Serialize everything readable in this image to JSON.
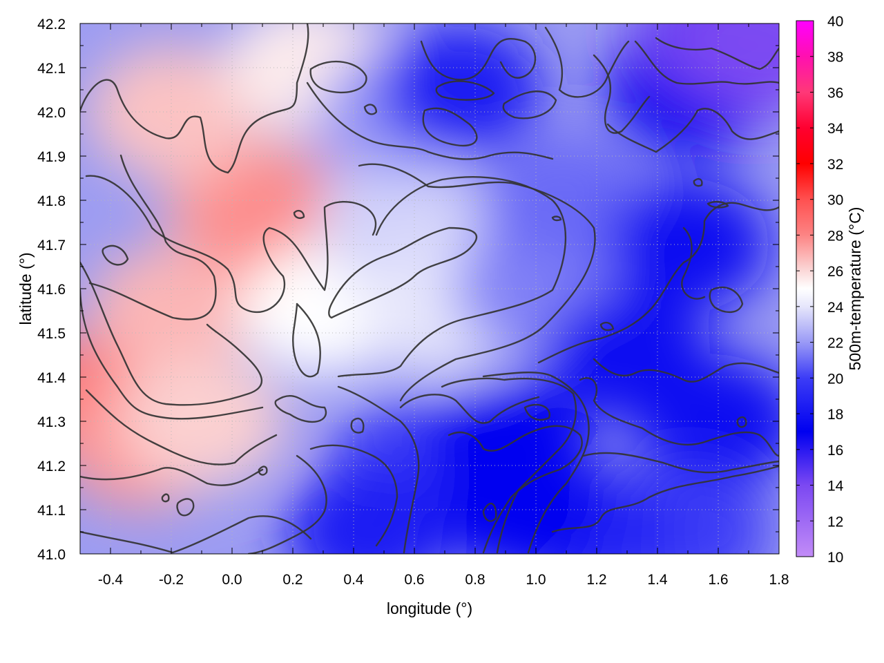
{
  "chart_data": {
    "type": "heatmap",
    "xlabel": "longitude (°)",
    "ylabel": "latitude (°)",
    "colorbar_label": "500m-temperature (°C)",
    "xlim": [
      -0.5,
      1.8
    ],
    "ylim": [
      41.0,
      42.2
    ],
    "clim": [
      10,
      40
    ],
    "x_ticks": [
      "-0.4",
      "-0.2",
      "0.0",
      "0.2",
      "0.4",
      "0.6",
      "0.8",
      "1.0",
      "1.2",
      "1.4",
      "1.6",
      "1.8"
    ],
    "x_tick_values": [
      -0.4,
      -0.2,
      0.0,
      0.2,
      0.4,
      0.6,
      0.8,
      1.0,
      1.2,
      1.4,
      1.6,
      1.8
    ],
    "y_ticks": [
      "41.0",
      "41.1",
      "41.2",
      "41.3",
      "41.4",
      "41.5",
      "41.6",
      "41.7",
      "41.8",
      "41.9",
      "42.0",
      "42.1",
      "42.2"
    ],
    "y_tick_values": [
      41.0,
      41.1,
      41.2,
      41.3,
      41.4,
      41.5,
      41.6,
      41.7,
      41.8,
      41.9,
      42.0,
      42.1,
      42.2
    ],
    "colorbar_ticks": [
      "10",
      "12",
      "14",
      "16",
      "18",
      "20",
      "22",
      "24",
      "26",
      "28",
      "30",
      "32",
      "34",
      "36",
      "38",
      "40"
    ],
    "colorbar_tick_values": [
      10,
      12,
      14,
      16,
      18,
      20,
      22,
      24,
      26,
      28,
      30,
      32,
      34,
      36,
      38,
      40
    ],
    "colormap": [
      {
        "value": 10,
        "color": "#c28cf7"
      },
      {
        "value": 14,
        "color": "#7b48f2"
      },
      {
        "value": 17,
        "color": "#0000f0"
      },
      {
        "value": 20,
        "color": "#3c3cf6"
      },
      {
        "value": 22,
        "color": "#9a9af6"
      },
      {
        "value": 24,
        "color": "#e6e6fb"
      },
      {
        "value": 25,
        "color": "#ffffff"
      },
      {
        "value": 26,
        "color": "#fbd8d8"
      },
      {
        "value": 28,
        "color": "#fc8484"
      },
      {
        "value": 30,
        "color": "#ff5050"
      },
      {
        "value": 32,
        "color": "#ff0000"
      },
      {
        "value": 34,
        "color": "#ff0030"
      },
      {
        "value": 36,
        "color": "#ff3878"
      },
      {
        "value": 38,
        "color": "#ff10b0"
      },
      {
        "value": 40,
        "color": "#ff00ff"
      }
    ],
    "field_samples": [
      {
        "lon": -0.45,
        "lat": 41.35,
        "temp": 28.5
      },
      {
        "lon": -0.3,
        "lat": 41.25,
        "temp": 27.5
      },
      {
        "lon": -0.2,
        "lat": 41.55,
        "temp": 26.8
      },
      {
        "lon": 0.05,
        "lat": 41.8,
        "temp": 27.2
      },
      {
        "lon": 0.15,
        "lat": 41.75,
        "temp": 27.8
      },
      {
        "lon": -0.2,
        "lat": 42.0,
        "temp": 26.5
      },
      {
        "lon": 0.25,
        "lat": 42.1,
        "temp": 25.5
      },
      {
        "lon": -0.1,
        "lat": 41.3,
        "temp": 26.2
      },
      {
        "lon": 0.3,
        "lat": 41.55,
        "temp": 25.0
      },
      {
        "lon": 0.55,
        "lat": 41.75,
        "temp": 23.5
      },
      {
        "lon": 0.7,
        "lat": 41.55,
        "temp": 24.0
      },
      {
        "lon": 0.55,
        "lat": 42.0,
        "temp": 22.0
      },
      {
        "lon": 0.75,
        "lat": 42.05,
        "temp": 18.5
      },
      {
        "lon": 0.6,
        "lat": 41.2,
        "temp": 20.0
      },
      {
        "lon": 0.45,
        "lat": 41.05,
        "temp": 18.5
      },
      {
        "lon": 0.9,
        "lat": 41.25,
        "temp": 17.0
      },
      {
        "lon": 1.0,
        "lat": 41.6,
        "temp": 21.5
      },
      {
        "lon": 1.1,
        "lat": 41.8,
        "temp": 21.0
      },
      {
        "lon": 1.3,
        "lat": 41.45,
        "temp": 17.5
      },
      {
        "lon": 1.5,
        "lat": 41.7,
        "temp": 17.5
      },
      {
        "lon": 1.5,
        "lat": 42.05,
        "temp": 17.0
      },
      {
        "lon": 1.6,
        "lat": 42.18,
        "temp": 14.5
      },
      {
        "lon": 1.75,
        "lat": 42.15,
        "temp": 14.0
      },
      {
        "lon": 1.6,
        "lat": 41.3,
        "temp": 17.5
      },
      {
        "lon": 1.5,
        "lat": 41.05,
        "temp": 20.0
      },
      {
        "lon": 1.2,
        "lat": 41.05,
        "temp": 19.0
      },
      {
        "lon": 0.95,
        "lat": 41.1,
        "temp": 17.0
      }
    ]
  }
}
